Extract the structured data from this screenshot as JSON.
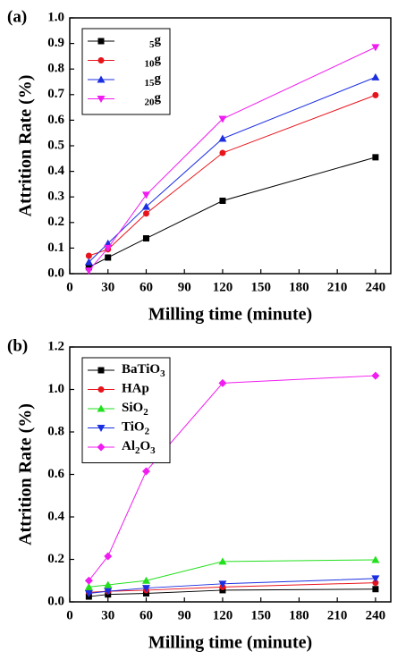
{
  "chart_data": [
    {
      "type": "line",
      "panel_label": "(a)",
      "xlabel": "Milling time (minute)",
      "ylabel": "Attrition Rate (%)",
      "x": [
        15,
        30,
        60,
        120,
        240
      ],
      "xlim": [
        0,
        252
      ],
      "xticks": [
        0,
        30,
        60,
        90,
        120,
        150,
        180,
        210,
        240
      ],
      "ylim": [
        0,
        1
      ],
      "yticks": [
        {
          "value": 0,
          "label": "0.0"
        },
        0.1,
        0.2,
        0.3,
        0.4,
        0.5,
        0.6,
        0.7,
        0.8,
        0.9,
        {
          "value": 1,
          "label": "1.0"
        }
      ],
      "legend": "upper left",
      "series": [
        {
          "name": "5g",
          "color": "#000000",
          "marker": "square",
          "values": [
            0.025,
            0.063,
            0.138,
            0.285,
            0.455
          ]
        },
        {
          "name": "10g",
          "color": "#e8141c",
          "marker": "circle",
          "values": [
            0.07,
            0.095,
            0.235,
            0.472,
            0.698
          ]
        },
        {
          "name": "15g",
          "color": "#1c2fe0",
          "marker": "triangle",
          "values": [
            0.045,
            0.118,
            0.262,
            0.528,
            0.768
          ]
        },
        {
          "name": "20g",
          "color": "#f01cf0",
          "marker": "down-triangle",
          "values": [
            0.012,
            0.1,
            0.308,
            0.605,
            0.885
          ]
        }
      ]
    },
    {
      "type": "line",
      "panel_label": "(b)",
      "xlabel": "Milling time (minute)",
      "ylabel": "Attrition Rate (%)",
      "x": [
        15,
        30,
        60,
        120,
        240
      ],
      "xlim": [
        0,
        252
      ],
      "xticks": [
        0,
        30,
        60,
        90,
        120,
        150,
        180,
        210,
        240
      ],
      "ylim": [
        0,
        1.2
      ],
      "yticks": [
        {
          "value": 0,
          "label": "0.0"
        },
        0.2,
        0.4,
        0.6,
        0.8,
        {
          "value": 1,
          "label": "1.0"
        },
        1.2
      ],
      "legend": "upper left",
      "series": [
        {
          "name": "BaTiO3",
          "color": "#000000",
          "marker": "square",
          "values": [
            0.025,
            0.035,
            0.04,
            0.055,
            0.06
          ]
        },
        {
          "name": "HAp",
          "color": "#e8141c",
          "marker": "circle",
          "values": [
            0.045,
            0.05,
            0.055,
            0.07,
            0.09
          ]
        },
        {
          "name": "SiO2",
          "color": "#22e01c",
          "marker": "triangle",
          "values": [
            0.07,
            0.08,
            0.1,
            0.19,
            0.198
          ]
        },
        {
          "name": "TiO2",
          "color": "#1c2fe0",
          "marker": "down-triangle",
          "values": [
            0.04,
            0.05,
            0.065,
            0.085,
            0.11
          ]
        },
        {
          "name": "Al2O3",
          "color": "#f01cf0",
          "marker": "diamond",
          "values": [
            0.1,
            0.215,
            0.615,
            1.03,
            1.065
          ]
        }
      ]
    }
  ]
}
